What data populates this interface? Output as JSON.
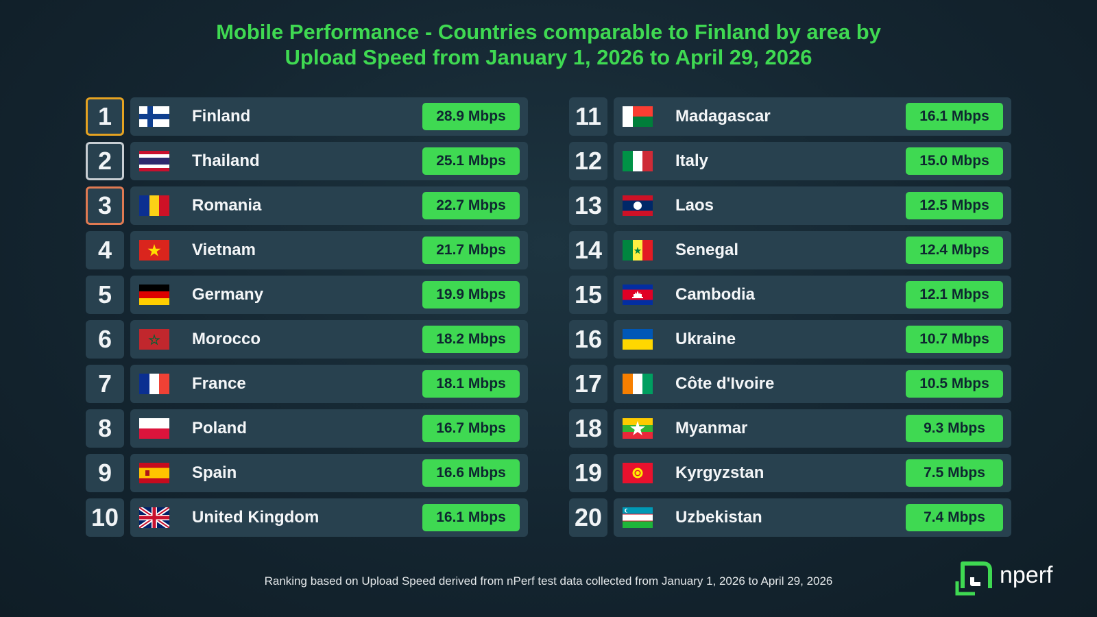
{
  "title_lines": [
    "Mobile Performance - Countries comparable to Finland by area by",
    "Upload Speed from January 1, 2026 to April 29, 2026"
  ],
  "footnote": "Ranking based on Upload Speed derived from nPerf test data collected from January 1, 2026 to April 29, 2026",
  "logo_text": "nperf",
  "colors": {
    "accent": "#3fd952",
    "gold": "#e6a321",
    "silver": "#c8ced3",
    "bronze": "#e07a52",
    "row_bg": "#28414f"
  },
  "chart_data": {
    "type": "table",
    "rows": [
      {
        "rank": "1",
        "country": "Finland",
        "flag": "finland-flag",
        "value": 28.9,
        "label": "28.9 Mbps"
      },
      {
        "rank": "2",
        "country": "Thailand",
        "flag": "thailand-flag",
        "value": 25.1,
        "label": "25.1 Mbps"
      },
      {
        "rank": "3",
        "country": "Romania",
        "flag": "romania-flag",
        "value": 22.7,
        "label": "22.7 Mbps"
      },
      {
        "rank": "4",
        "country": "Vietnam",
        "flag": "vietnam-flag",
        "value": 21.7,
        "label": "21.7 Mbps"
      },
      {
        "rank": "5",
        "country": "Germany",
        "flag": "germany-flag",
        "value": 19.9,
        "label": "19.9 Mbps"
      },
      {
        "rank": "6",
        "country": "Morocco",
        "flag": "morocco-flag",
        "value": 18.2,
        "label": "18.2 Mbps"
      },
      {
        "rank": "7",
        "country": "France",
        "flag": "france-flag",
        "value": 18.1,
        "label": "18.1 Mbps"
      },
      {
        "rank": "8",
        "country": "Poland",
        "flag": "poland-flag",
        "value": 16.7,
        "label": "16.7 Mbps"
      },
      {
        "rank": "9",
        "country": "Spain",
        "flag": "spain-flag",
        "value": 16.6,
        "label": "16.6 Mbps"
      },
      {
        "rank": "10",
        "country": "United Kingdom",
        "flag": "united-kingdom-flag",
        "value": 16.1,
        "label": "16.1 Mbps"
      },
      {
        "rank": "11",
        "country": "Madagascar",
        "flag": "madagascar-flag",
        "value": 16.1,
        "label": "16.1 Mbps"
      },
      {
        "rank": "12",
        "country": "Italy",
        "flag": "italy-flag",
        "value": 15.0,
        "label": "15.0 Mbps"
      },
      {
        "rank": "13",
        "country": "Laos",
        "flag": "laos-flag",
        "value": 12.5,
        "label": "12.5 Mbps"
      },
      {
        "rank": "14",
        "country": "Senegal",
        "flag": "senegal-flag",
        "value": 12.4,
        "label": "12.4 Mbps"
      },
      {
        "rank": "15",
        "country": "Cambodia",
        "flag": "cambodia-flag",
        "value": 12.1,
        "label": "12.1 Mbps"
      },
      {
        "rank": "16",
        "country": "Ukraine",
        "flag": "ukraine-flag",
        "value": 10.7,
        "label": "10.7 Mbps"
      },
      {
        "rank": "17",
        "country": "Côte d'Ivoire",
        "flag": "cote-divoire-flag",
        "value": 10.5,
        "label": "10.5 Mbps"
      },
      {
        "rank": "18",
        "country": "Myanmar",
        "flag": "myanmar-flag",
        "value": 9.3,
        "label": "9.3 Mbps"
      },
      {
        "rank": "19",
        "country": "Kyrgyzstan",
        "flag": "kyrgyzstan-flag",
        "value": 7.5,
        "label": "7.5 Mbps"
      },
      {
        "rank": "20",
        "country": "Uzbekistan",
        "flag": "uzbekistan-flag",
        "value": 7.4,
        "label": "7.4 Mbps"
      }
    ]
  }
}
